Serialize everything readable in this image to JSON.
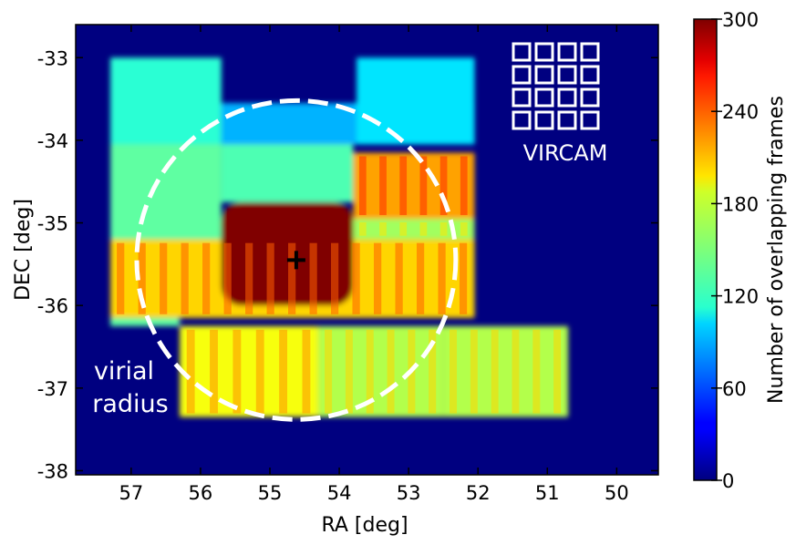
{
  "chart_data": {
    "type": "heatmap",
    "title": "",
    "xlabel": "RA [deg]",
    "ylabel": "DEC [deg]",
    "xlim": [
      57.8,
      49.4
    ],
    "ylim": [
      -38.05,
      -32.6
    ],
    "x_inverted": true,
    "grid": false,
    "x_ticks": [
      57,
      56,
      55,
      54,
      53,
      52,
      51,
      50
    ],
    "x_tick_labels": [
      "57",
      "56",
      "55",
      "54",
      "53",
      "52",
      "51",
      "50"
    ],
    "y_ticks": [
      -33,
      -34,
      -35,
      -36,
      -37,
      -38
    ],
    "y_tick_labels": [
      "-33",
      "-34",
      "-35",
      "-36",
      "-37",
      "-38"
    ],
    "colormap": "jet",
    "colorbar": {
      "label": "Number of overlapping frames",
      "min": 0,
      "max": 300,
      "ticks": [
        0,
        60,
        120,
        180,
        240,
        300
      ],
      "tick_labels": [
        "0",
        "60",
        "120",
        "180",
        "240",
        "300"
      ]
    },
    "background_value": 0,
    "regions": [
      {
        "name": "upper-left tile",
        "ra": [
          57.3,
          55.7
        ],
        "dec": [
          -33.0,
          -34.05
        ],
        "value": 125
      },
      {
        "name": "upper-middle tile",
        "ra": [
          55.7,
          52.05
        ],
        "dec": [
          -33.55,
          -34.05
        ],
        "value": 90
      },
      {
        "name": "upper-right tile",
        "ra": [
          53.75,
          52.05
        ],
        "dec": [
          -33.0,
          -34.05
        ],
        "value": 105
      },
      {
        "name": "left middle band",
        "ra": [
          57.3,
          55.7
        ],
        "dec": [
          -34.05,
          -35.2
        ],
        "value": 140
      },
      {
        "name": "center-left band",
        "ra": [
          55.7,
          53.8
        ],
        "dec": [
          -34.05,
          -34.75
        ],
        "value": 135
      },
      {
        "name": "right tile upper",
        "ra": [
          53.8,
          52.05
        ],
        "dec": [
          -34.15,
          -34.95
        ],
        "value": 215
      },
      {
        "name": "right middle band",
        "ra": [
          53.8,
          52.05
        ],
        "dec": [
          -34.95,
          -35.2
        ],
        "value": 160
      },
      {
        "name": "central horizontal band",
        "ra": [
          57.3,
          52.05
        ],
        "dec": [
          -35.2,
          -36.15
        ],
        "value": 200
      },
      {
        "name": "left lower strip",
        "ra": [
          57.3,
          56.3
        ],
        "dec": [
          -36.15,
          -36.25
        ],
        "value": 140
      },
      {
        "name": "lower left tile",
        "ra": [
          56.3,
          54.3
        ],
        "dec": [
          -36.25,
          -37.35
        ],
        "value": 185
      },
      {
        "name": "lower middle tile",
        "ra": [
          54.3,
          52.5
        ],
        "dec": [
          -36.25,
          -37.35
        ],
        "value": 165
      },
      {
        "name": "lower right tile",
        "ra": [
          52.5,
          50.7
        ],
        "dec": [
          -36.25,
          -37.35
        ],
        "value": 165
      },
      {
        "name": "central core",
        "ra": [
          55.7,
          53.8
        ],
        "dec": [
          -34.75,
          -36.0
        ],
        "value": 300
      }
    ],
    "center_marker": {
      "ra": 54.62,
      "dec": -35.45,
      "symbol": "+"
    },
    "virial_circle": {
      "center_ra": 54.62,
      "center_dec": -35.45,
      "radius_deg": 1.93
    },
    "annotations": {
      "virial": "virial",
      "radius": "radius",
      "vircam": "VIRCAM"
    },
    "vircam_grid": {
      "cols": 4,
      "rows": 4
    }
  },
  "colors": {
    "background": "#00007f",
    "circle": "#ffffff",
    "marker": "#000000",
    "annotation": "#ffffff"
  }
}
